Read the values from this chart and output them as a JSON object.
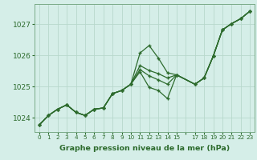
{
  "title": "Graphe pression niveau de la mer (hPa)",
  "bg_color": "#d5eee8",
  "grid_color": "#b8d8cc",
  "line_color": "#2d6b2d",
  "xlim_min": -0.5,
  "xlim_max": 23.5,
  "ylim_min": 1023.55,
  "ylim_max": 1027.65,
  "yticks": [
    1024,
    1025,
    1026,
    1027
  ],
  "xtick_labels": [
    "0",
    "1",
    "2",
    "3",
    "4",
    "5",
    "6",
    "7",
    "8",
    "9",
    "10",
    "11",
    "12",
    "13",
    "14",
    "15",
    "",
    "17",
    "18",
    "19",
    "20",
    "21",
    "22",
    "23"
  ],
  "series": [
    [
      1023.78,
      1024.08,
      1024.28,
      1024.42,
      1024.18,
      1024.08,
      1024.28,
      1024.32,
      1024.78,
      1024.88,
      1025.08,
      1026.08,
      1026.32,
      1025.92,
      1025.45,
      1025.38,
      null,
      1025.08,
      1025.28,
      1025.98,
      1026.82,
      1027.02,
      1027.18,
      1027.42
    ],
    [
      1023.78,
      1024.08,
      1024.28,
      1024.42,
      1024.18,
      1024.08,
      1024.28,
      1024.32,
      1024.78,
      1024.88,
      1025.08,
      1025.68,
      1025.52,
      1025.42,
      1025.28,
      1025.38,
      null,
      1025.08,
      1025.28,
      1025.98,
      1026.82,
      1027.02,
      1027.18,
      1027.42
    ],
    [
      1023.78,
      1024.08,
      1024.28,
      1024.42,
      1024.18,
      1024.08,
      1024.28,
      1024.32,
      1024.78,
      1024.88,
      1025.08,
      1025.55,
      1025.35,
      1025.22,
      1025.08,
      1025.38,
      null,
      1025.08,
      1025.28,
      1025.98,
      1026.82,
      1027.02,
      1027.18,
      1027.42
    ],
    [
      1023.78,
      1024.08,
      1024.28,
      1024.42,
      1024.18,
      1024.08,
      1024.28,
      1024.32,
      1024.78,
      1024.88,
      1025.08,
      1025.48,
      1024.98,
      1024.88,
      1024.62,
      1025.38,
      null,
      1025.08,
      1025.28,
      1025.98,
      1026.82,
      1027.02,
      1027.18,
      1027.42
    ]
  ]
}
